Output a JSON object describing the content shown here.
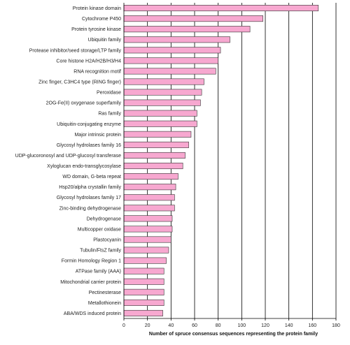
{
  "chart_data": {
    "type": "bar",
    "orientation": "horizontal",
    "categories": [
      "Protein kinase domain",
      "Cytochrome P450",
      "Protein tyrosine kinase",
      "Ubiquitin family",
      "Protease inhibitor/seed storage/LTP family",
      "Core histone H2A/H2B/H3/H4",
      "RNA recognition motif",
      "Zinc finger, C3HC4 type (RING finger)",
      "Peroxidase",
      "2OG-Fe(II) oxygenase superfamily",
      "Ras family",
      "Ubiquitin-conjugating enzyme",
      "Major intrinsic protein",
      "Glycosyl hydrolases family 16",
      "UDP-glucoronosyl and UDP-glucosyl transferase",
      "Xyloglucan endo-transglycosylase",
      "WD domain, G-beta repeat",
      "Hsp20/alpha crystallin family",
      "Glycosyl hydrolases family 17",
      "Zinc-binding dehydrogenase",
      "Dehydrogenase",
      "Multicopper oxidase",
      "Plastocyanin",
      "Tubulin/FtsZ family",
      "Formin Homology Region 1",
      "ATPase family (AAA)",
      "Mitochondrial carrier protein",
      "Pectinesterase",
      "Metallothionein",
      "ABA/WDS induced protein"
    ],
    "values": [
      165,
      118,
      107,
      90,
      82,
      80,
      78,
      68,
      66,
      65,
      62,
      62,
      57,
      55,
      52,
      50,
      46,
      44,
      43,
      43,
      41,
      41,
      40,
      38,
      36,
      34,
      34,
      34,
      34,
      33
    ],
    "xlabel": "Number of spruce consensus sequences representing the protein family",
    "xlim": [
      0,
      180
    ],
    "xticks": [
      "0",
      "20",
      "40",
      "60",
      "80",
      "100",
      "120",
      "140",
      "160",
      "180"
    ],
    "grid": "vertical",
    "colors": {
      "bar": "#f7a8d0",
      "bar_border": "#333333"
    }
  }
}
